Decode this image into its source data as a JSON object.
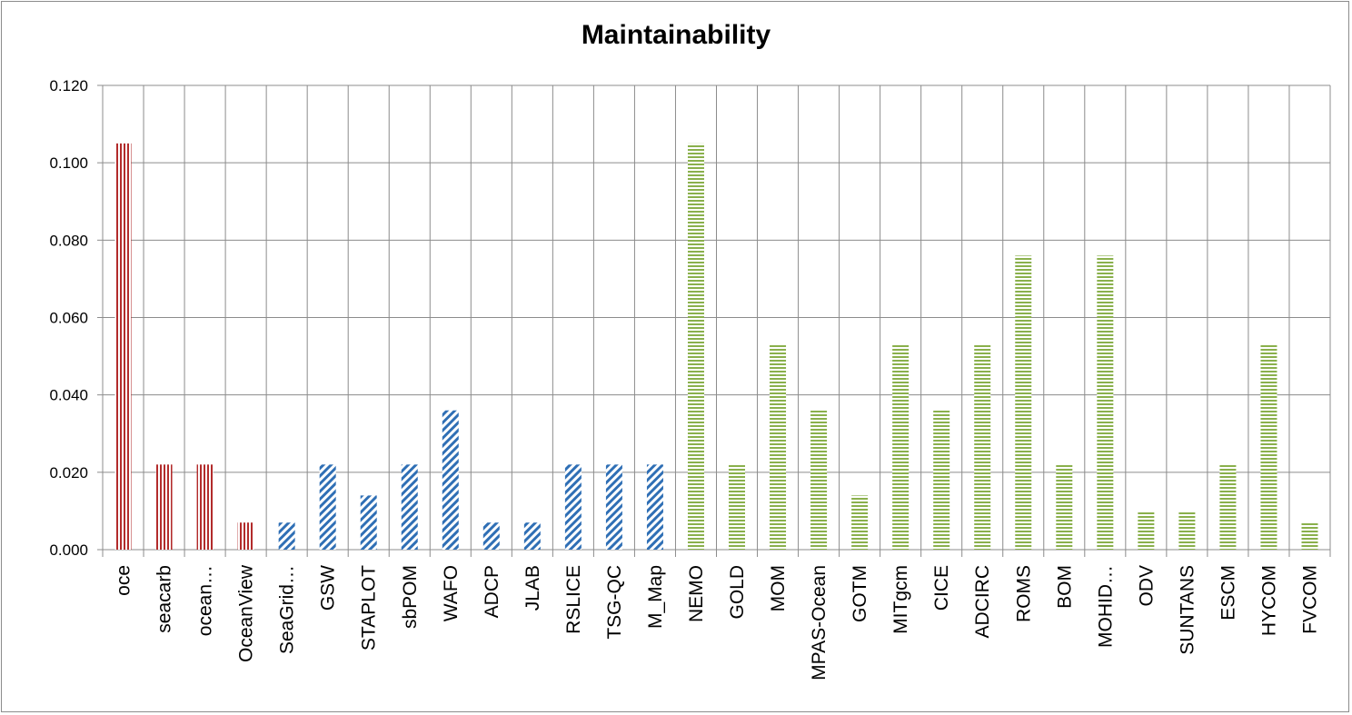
{
  "chart_data": {
    "type": "bar",
    "title": "Maintainability",
    "xlabel": "",
    "ylabel": "",
    "ylim": [
      0,
      0.12
    ],
    "yticks": [
      "0.000",
      "0.020",
      "0.040",
      "0.060",
      "0.080",
      "0.100",
      "0.120"
    ],
    "grid": true,
    "legend": "none",
    "categories": [
      "oce",
      "seacarb",
      "ocean…",
      "OceanView",
      "SeaGrid…",
      "GSW",
      "STAPLOT",
      "sbPOM",
      "WAFO",
      "ADCP",
      "JLAB",
      "RSLICE",
      "TSG-QC",
      "M_Map",
      "NEMO",
      "GOLD",
      "MOM",
      "MPAS-Ocean",
      "GOTM",
      "MITgcm",
      "CICE",
      "ADCIRC",
      "ROMS",
      "BOM",
      "MOHID…",
      "ODV",
      "SUNTANS",
      "ESCM",
      "HYCOM",
      "FVCOM"
    ],
    "values": [
      0.105,
      0.022,
      0.022,
      0.007,
      0.007,
      0.022,
      0.014,
      0.022,
      0.036,
      0.007,
      0.007,
      0.022,
      0.022,
      0.022,
      0.105,
      0.022,
      0.053,
      0.036,
      0.014,
      0.053,
      0.036,
      0.053,
      0.076,
      0.022,
      0.076,
      0.01,
      0.01,
      0.022,
      0.053,
      0.007
    ],
    "groups": [
      "red",
      "red",
      "red",
      "red",
      "blue",
      "blue",
      "blue",
      "blue",
      "blue",
      "blue",
      "blue",
      "blue",
      "blue",
      "blue",
      "green",
      "green",
      "green",
      "green",
      "green",
      "green",
      "green",
      "green",
      "green",
      "green",
      "green",
      "green",
      "green",
      "green",
      "green",
      "green"
    ],
    "colors": {
      "red": "#b22b2b",
      "blue": "#2f6fb5",
      "green": "#8ab04c",
      "grid": "#8c8c8c",
      "axis": "#8c8c8c"
    }
  }
}
